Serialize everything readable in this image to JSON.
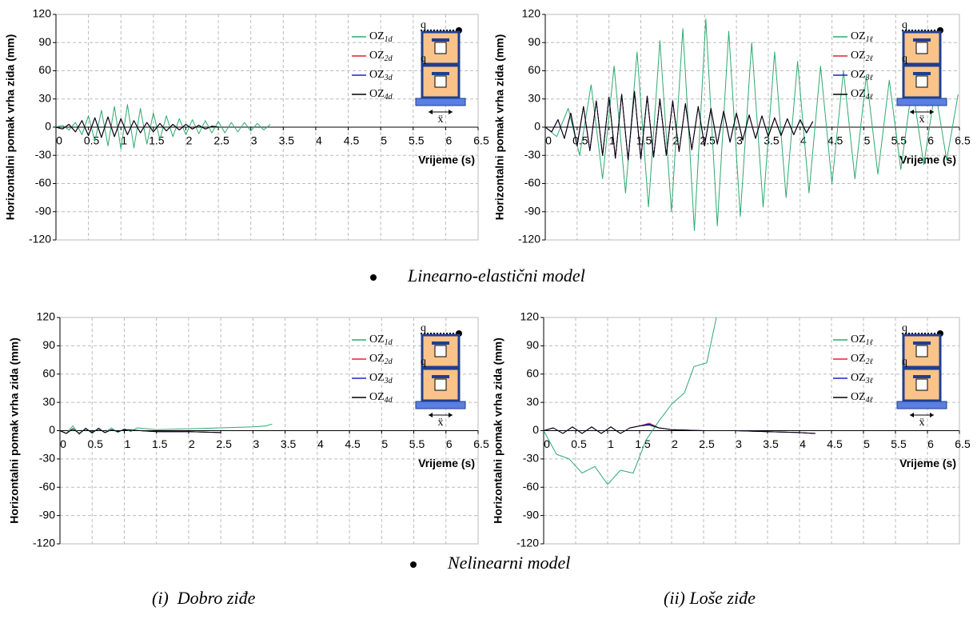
{
  "icon": {
    "load": "q",
    "excitation": "ẍ"
  },
  "section_labels": [
    "Linearno-elastični model",
    "Nelinearni model"
  ],
  "column_labels": [
    "(i)  Dobro ziđe",
    "(ii) Loše ziđe"
  ],
  "chart_data": [
    {
      "type": "line",
      "ylabel": "Horizontalni pomak vrha zida (mm)",
      "xlabel": "Vrijeme (s)",
      "xlim": [
        0,
        6.5
      ],
      "xticks": [
        0,
        0.5,
        1,
        1.5,
        2,
        2.5,
        3,
        3.5,
        4,
        4.5,
        5,
        5.5,
        6,
        6.5
      ],
      "ylim": [
        -120,
        120
      ],
      "yticks": [
        -120,
        -90,
        -60,
        -30,
        0,
        30,
        60,
        90,
        120
      ],
      "grid": true,
      "legend_corner": "upper right",
      "series": [
        {
          "name": "OZ1d",
          "color": "#2eaa6e",
          "x": [
            0,
            0.1,
            0.2,
            0.3,
            0.4,
            0.5,
            0.6,
            0.7,
            0.8,
            0.9,
            1,
            1.1,
            1.2,
            1.3,
            1.4,
            1.5,
            1.6,
            1.7,
            1.8,
            1.9,
            2,
            2.1,
            2.2,
            2.3,
            2.4,
            2.5,
            2.6,
            2.7,
            2.8,
            2.9,
            3,
            3.1,
            3.2,
            3.3
          ],
          "values": [
            0,
            2,
            -3,
            5,
            -8,
            12,
            -15,
            18,
            -20,
            22,
            -23,
            24,
            -22,
            20,
            -18,
            15,
            -13,
            12,
            -10,
            9,
            -8,
            8,
            -7,
            7,
            -6,
            6,
            -6,
            5,
            -5,
            5,
            -4,
            4,
            -3,
            3
          ]
        },
        {
          "name": "OZ2d",
          "color": "#e8202a",
          "x": [
            0,
            0.1,
            0.2,
            0.3,
            0.4,
            0.5,
            0.6,
            0.7,
            0.8,
            0.9,
            1,
            1.1,
            1.2,
            1.3,
            1.4,
            1.5,
            1.6,
            1.7,
            1.8,
            1.9,
            2,
            2.1,
            2.2,
            2.3,
            2.4,
            2.5
          ],
          "values": [
            0,
            -2,
            3,
            -5,
            7,
            -9,
            10,
            -11,
            11,
            -10,
            9,
            -8,
            7,
            -6,
            5,
            -5,
            4,
            -4,
            3,
            -3,
            3,
            -2,
            2,
            -2,
            1,
            0
          ]
        },
        {
          "name": "OZ3d",
          "color": "#2020d0",
          "x": [
            0,
            0.1,
            0.2,
            0.3,
            0.4,
            0.5,
            0.6,
            0.7,
            0.8,
            0.9,
            1,
            1.1,
            1.2,
            1.3,
            1.4,
            1.5,
            1.6,
            1.7,
            1.8,
            1.9,
            2,
            2.1,
            2.2,
            2.3,
            2.4,
            2.5
          ],
          "values": [
            0,
            -2,
            3,
            -5,
            7,
            -9,
            10,
            -11,
            11,
            -10,
            9,
            -8,
            7,
            -6,
            5,
            -5,
            4,
            -4,
            3,
            -3,
            3,
            -2,
            2,
            -2,
            1,
            0
          ]
        },
        {
          "name": "OZ4d",
          "color": "#000000",
          "x": [
            0,
            0.1,
            0.2,
            0.3,
            0.4,
            0.5,
            0.6,
            0.7,
            0.8,
            0.9,
            1,
            1.1,
            1.2,
            1.3,
            1.4,
            1.5,
            1.6,
            1.7,
            1.8,
            1.9,
            2,
            2.1,
            2.2,
            2.3,
            2.4,
            2.5
          ],
          "values": [
            0,
            -2,
            3,
            -5,
            7,
            -9,
            10,
            -11,
            11,
            -10,
            9,
            -8,
            7,
            -6,
            5,
            -5,
            4,
            -4,
            3,
            -3,
            3,
            -2,
            2,
            -2,
            1,
            0
          ]
        }
      ]
    },
    {
      "type": "line",
      "ylabel": "Horizontalni pomak vrha zida (mm)",
      "xlabel": "Vrijeme (s)",
      "xlim": [
        0,
        6.5
      ],
      "xticks": [
        0,
        0.5,
        1,
        1.5,
        2,
        2.5,
        3,
        3.5,
        4,
        4.5,
        5,
        5.5,
        6,
        6.5
      ],
      "ylim": [
        -120,
        120
      ],
      "yticks": [
        -120,
        -90,
        -60,
        -30,
        0,
        30,
        60,
        90,
        120
      ],
      "grid": true,
      "legend_corner": "upper right",
      "series": [
        {
          "name": "OZ1ℓ",
          "color": "#2eaa6e",
          "x": [
            0,
            0.18,
            0.36,
            0.54,
            0.72,
            0.9,
            1.08,
            1.26,
            1.44,
            1.62,
            1.8,
            1.98,
            2.16,
            2.34,
            2.52,
            2.7,
            2.88,
            3.06,
            3.24,
            3.42,
            3.6,
            3.78,
            3.96,
            4.14,
            4.32,
            4.5,
            4.68,
            4.86,
            5.04,
            5.22,
            5.4,
            5.58,
            5.76,
            5.94,
            6.12,
            6.3,
            6.48
          ],
          "values": [
            0,
            -10,
            20,
            -30,
            45,
            -55,
            65,
            -70,
            80,
            -85,
            92,
            -90,
            105,
            -110,
            115,
            -105,
            102,
            -95,
            90,
            -85,
            80,
            -75,
            70,
            -70,
            65,
            -60,
            60,
            -55,
            55,
            -50,
            50,
            -45,
            45,
            -40,
            40,
            -35,
            35
          ]
        },
        {
          "name": "OZ2ℓ",
          "color": "#e8202a",
          "x": [
            0,
            0.1,
            0.2,
            0.3,
            0.4,
            0.5,
            0.6,
            0.7,
            0.8,
            0.9,
            1,
            1.1,
            1.2,
            1.3,
            1.4,
            1.5,
            1.6,
            1.7,
            1.8,
            1.9,
            2,
            2.1,
            2.2,
            2.3,
            2.4,
            2.5,
            2.6,
            2.7,
            2.8,
            2.9,
            3,
            3.1,
            3.2,
            3.3,
            3.4,
            3.5,
            3.6,
            3.7,
            3.8,
            3.9,
            4,
            4.1,
            4.2
          ],
          "values": [
            0,
            -5,
            8,
            -12,
            15,
            -20,
            22,
            -25,
            28,
            -30,
            32,
            -33,
            35,
            -35,
            38,
            -34,
            33,
            -32,
            30,
            -30,
            28,
            -26,
            25,
            -24,
            22,
            -20,
            20,
            -18,
            17,
            -16,
            15,
            -14,
            13,
            -12,
            12,
            -10,
            10,
            -9,
            9,
            -8,
            8,
            -6,
            6
          ]
        },
        {
          "name": "OZ3ℓ",
          "color": "#2020d0",
          "x": [
            0,
            0.1,
            0.2,
            0.3,
            0.4,
            0.5,
            0.6,
            0.7,
            0.8,
            0.9,
            1,
            1.1,
            1.2,
            1.3,
            1.4,
            1.5,
            1.6,
            1.7,
            1.8,
            1.9,
            2,
            2.1,
            2.2,
            2.3,
            2.4,
            2.5,
            2.6,
            2.7,
            2.8,
            2.9,
            3,
            3.1,
            3.2,
            3.3,
            3.4,
            3.5,
            3.6,
            3.7,
            3.8,
            3.9,
            4,
            4.1,
            4.2
          ],
          "values": [
            0,
            -5,
            8,
            -12,
            15,
            -20,
            22,
            -25,
            28,
            -30,
            32,
            -33,
            35,
            -35,
            38,
            -34,
            33,
            -32,
            30,
            -30,
            28,
            -26,
            25,
            -24,
            22,
            -20,
            20,
            -18,
            17,
            -16,
            15,
            -14,
            13,
            -12,
            12,
            -10,
            10,
            -9,
            9,
            -8,
            8,
            -6,
            6
          ]
        },
        {
          "name": "OZ4ℓ",
          "color": "#000000",
          "x": [
            0,
            0.1,
            0.2,
            0.3,
            0.4,
            0.5,
            0.6,
            0.7,
            0.8,
            0.9,
            1,
            1.1,
            1.2,
            1.3,
            1.4,
            1.5,
            1.6,
            1.7,
            1.8,
            1.9,
            2,
            2.1,
            2.2,
            2.3,
            2.4,
            2.5,
            2.6,
            2.7,
            2.8,
            2.9,
            3,
            3.1,
            3.2,
            3.3,
            3.4,
            3.5,
            3.6,
            3.7,
            3.8,
            3.9,
            4,
            4.1,
            4.2
          ],
          "values": [
            0,
            -5,
            8,
            -12,
            15,
            -20,
            22,
            -25,
            28,
            -30,
            32,
            -33,
            35,
            -35,
            38,
            -34,
            33,
            -32,
            30,
            -30,
            28,
            -26,
            25,
            -24,
            22,
            -20,
            20,
            -18,
            17,
            -16,
            15,
            -14,
            13,
            -12,
            12,
            -10,
            10,
            -9,
            9,
            -8,
            8,
            -6,
            6
          ]
        }
      ]
    },
    {
      "type": "line",
      "ylabel": "Horizontalni pomak vrha zida (mm)",
      "xlabel": "Vrijeme (s)",
      "xlim": [
        0,
        6.5
      ],
      "xticks": [
        0,
        0.5,
        1,
        1.5,
        2,
        2.5,
        3,
        3.5,
        4,
        4.5,
        5,
        5.5,
        6,
        6.5
      ],
      "ylim": [
        -120,
        120
      ],
      "yticks": [
        -120,
        -90,
        -60,
        -30,
        0,
        30,
        60,
        90,
        120
      ],
      "grid": true,
      "legend_corner": "upper right",
      "series": [
        {
          "name": "OZ1d",
          "color": "#2eaa6e",
          "x": [
            0,
            0.1,
            0.2,
            0.3,
            0.4,
            0.5,
            0.6,
            0.7,
            0.8,
            0.9,
            1,
            1.1,
            1.2,
            1.5,
            2,
            2.5,
            3,
            3.2,
            3.3
          ],
          "values": [
            0,
            -3,
            5,
            -4,
            3,
            -3,
            3,
            -2,
            3,
            -2,
            2,
            -1,
            3,
            1,
            2,
            3,
            4,
            5,
            7
          ]
        },
        {
          "name": "OZ2d",
          "color": "#e8202a",
          "x": [
            0,
            0.1,
            0.2,
            0.3,
            0.4,
            0.5,
            0.6,
            0.7,
            0.8,
            0.9,
            1,
            1.5,
            2,
            2.5
          ],
          "values": [
            0,
            -3,
            2,
            -3,
            2,
            -2,
            2,
            -2,
            1,
            -1,
            1,
            -1,
            -1,
            -2
          ]
        },
        {
          "name": "OZ3d",
          "color": "#2020d0",
          "x": [
            0,
            0.1,
            0.2,
            0.3,
            0.4,
            0.5,
            0.6,
            0.7,
            0.8,
            0.9,
            1,
            1.5,
            2,
            2.5
          ],
          "values": [
            0,
            -3,
            2,
            -3,
            2,
            -2,
            2,
            -2,
            1,
            -1,
            1,
            -1,
            -1,
            -2
          ]
        },
        {
          "name": "OZ4d",
          "color": "#000000",
          "x": [
            0,
            0.1,
            0.2,
            0.3,
            0.4,
            0.5,
            0.6,
            0.7,
            0.8,
            0.9,
            1,
            1.5,
            2,
            2.5
          ],
          "values": [
            0,
            -3,
            2,
            -3,
            2,
            -2,
            2,
            -2,
            1,
            -1,
            1,
            -1,
            -1,
            -2
          ]
        }
      ]
    },
    {
      "type": "line",
      "ylabel": "Horizontalni pomak vrha zida (mm)",
      "xlabel": "Vrijeme (s)",
      "xlim": [
        0,
        6.5
      ],
      "xticks": [
        0,
        0.5,
        1,
        1.5,
        2,
        2.5,
        3,
        3.5,
        4,
        4.5,
        5,
        5.5,
        6,
        6.5
      ],
      "ylim": [
        -120,
        120
      ],
      "yticks": [
        -120,
        -90,
        -60,
        -30,
        0,
        30,
        60,
        90,
        120
      ],
      "grid": true,
      "legend_corner": "upper right",
      "series": [
        {
          "name": "OZ1ℓ",
          "color": "#2eaa6e",
          "x": [
            0,
            0.2,
            0.4,
            0.6,
            0.8,
            1,
            1.2,
            1.4,
            1.6,
            1.8,
            2,
            2.2,
            2.35,
            2.55,
            2.7
          ],
          "values": [
            0,
            -25,
            -30,
            -45,
            -38,
            -57,
            -42,
            -45,
            -10,
            10,
            28,
            40,
            68,
            72,
            120
          ]
        },
        {
          "name": "OZ2ℓ",
          "color": "#e8202a",
          "x": [
            0,
            0.15,
            0.3,
            0.45,
            0.6,
            0.75,
            0.9,
            1.05,
            1.2,
            1.35,
            1.5,
            1.65,
            1.8,
            2,
            2.5,
            3,
            3.5,
            4,
            4.25
          ],
          "values": [
            0,
            3,
            -3,
            4,
            -3,
            4,
            -3,
            4,
            -3,
            3,
            5,
            8,
            3,
            1,
            0,
            0,
            -1,
            -2,
            -3
          ]
        },
        {
          "name": "OZ3ℓ",
          "color": "#2020d0",
          "x": [
            0,
            0.15,
            0.3,
            0.45,
            0.6,
            0.75,
            0.9,
            1.05,
            1.2,
            1.35,
            1.5,
            1.65,
            1.8,
            2,
            2.5,
            3,
            3.5,
            4,
            4.25
          ],
          "values": [
            0,
            3,
            -3,
            4,
            -3,
            4,
            -3,
            4,
            -3,
            3,
            5,
            7,
            3,
            1,
            0,
            0,
            -1,
            -2,
            -3
          ]
        },
        {
          "name": "OZ4ℓ",
          "color": "#000000",
          "x": [
            0,
            0.15,
            0.3,
            0.45,
            0.6,
            0.75,
            0.9,
            1.05,
            1.2,
            1.35,
            1.5,
            1.65,
            1.8,
            2,
            2.5,
            3,
            3.5,
            4,
            4.25
          ],
          "values": [
            0,
            3,
            -3,
            4,
            -3,
            4,
            -3,
            4,
            -3,
            3,
            5,
            6,
            3,
            1,
            0,
            0,
            -1,
            -2,
            -3
          ]
        }
      ]
    }
  ]
}
